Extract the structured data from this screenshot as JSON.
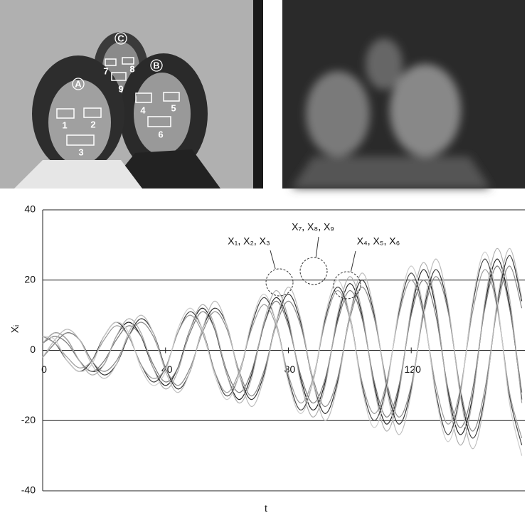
{
  "photo_labels": {
    "persons": [
      "A",
      "B",
      "C"
    ],
    "regions": [
      "1",
      "2",
      "3",
      "4",
      "5",
      "6",
      "7",
      "8",
      "9"
    ]
  },
  "chart_data": {
    "type": "line",
    "xlabel": "t",
    "ylabel": "Xᵢ",
    "xlim": [
      0,
      157
    ],
    "xticks": [
      0,
      40,
      80,
      120
    ],
    "ylim": [
      -40,
      40
    ],
    "yticks": [
      -40,
      -20,
      0,
      20,
      40
    ],
    "grid": true,
    "annotations": [
      "X₁, X₂, X₃",
      "X₇, X₈, X₉",
      "X₄, X₅, X₆"
    ],
    "x": [
      0,
      4,
      8,
      12,
      16,
      20,
      24,
      28,
      32,
      36,
      40,
      44,
      48,
      52,
      56,
      60,
      64,
      68,
      72,
      76,
      80,
      84,
      88,
      92,
      96,
      100,
      104,
      108,
      112,
      116,
      120,
      124,
      128,
      132,
      136,
      140,
      144,
      148,
      152,
      156
    ],
    "series": [
      {
        "color": "#222222",
        "values": [
          2,
          5,
          3,
          -3,
          -6,
          -4,
          4,
          8,
          4,
          -5,
          -10,
          -5,
          6,
          12,
          6,
          -7,
          -14,
          -7,
          7,
          15,
          8,
          -8,
          -17,
          -9,
          9,
          19,
          10,
          -10,
          -21,
          -11,
          11,
          23,
          12,
          -12,
          -24,
          -13,
          13,
          26,
          13,
          -14
        ]
      },
      {
        "color": "#777777",
        "values": [
          2,
          4,
          2,
          -3,
          -6,
          -3,
          3,
          7,
          4,
          -4,
          -9,
          -5,
          5,
          11,
          6,
          -6,
          -12,
          -6,
          7,
          14,
          7,
          -7,
          -15,
          -8,
          8,
          17,
          9,
          -9,
          -19,
          -10,
          10,
          20,
          10,
          -11,
          -22,
          -11,
          12,
          24,
          12,
          -12
        ]
      },
      {
        "color": "#aaaaaa",
        "values": [
          2,
          5,
          3,
          -3,
          -7,
          -4,
          4,
          9,
          5,
          -5,
          -11,
          -6,
          6,
          13,
          7,
          -7,
          -15,
          -8,
          8,
          17,
          9,
          -9,
          -19,
          -10,
          10,
          21,
          11,
          -11,
          -23,
          -12,
          12,
          25,
          13,
          -13,
          -27,
          -14,
          14,
          29,
          15,
          -15
        ]
      },
      {
        "color": "#333333",
        "values": [
          -2,
          2,
          5,
          3,
          -3,
          -7,
          -4,
          4,
          9,
          5,
          -5,
          -11,
          -6,
          6,
          12,
          7,
          -7,
          -14,
          -7,
          8,
          16,
          8,
          -9,
          -18,
          -9,
          10,
          20,
          10,
          -10,
          -21,
          -11,
          11,
          23,
          12,
          -12,
          -25,
          -13,
          13,
          27,
          14
        ]
      },
      {
        "color": "#888888",
        "values": [
          -2,
          2,
          5,
          3,
          -3,
          -6,
          -3,
          4,
          8,
          4,
          -5,
          -10,
          -5,
          5,
          11,
          6,
          -6,
          -13,
          -6,
          7,
          14,
          7,
          -8,
          -16,
          -8,
          9,
          18,
          9,
          -9,
          -19,
          -10,
          10,
          21,
          11,
          -11,
          -23,
          -11,
          12,
          24,
          12
        ]
      },
      {
        "color": "#bbbbbb",
        "values": [
          -2,
          3,
          6,
          3,
          -4,
          -8,
          -4,
          5,
          10,
          5,
          -6,
          -12,
          -6,
          6,
          14,
          7,
          -7,
          -16,
          -8,
          8,
          18,
          9,
          -9,
          -20,
          -10,
          10,
          22,
          11,
          -11,
          -24,
          -12,
          12,
          26,
          13,
          -13,
          -28,
          -14,
          14,
          29,
          15
        ]
      },
      {
        "color": "#444444",
        "values": [
          4,
          2,
          -3,
          -6,
          -3,
          4,
          8,
          4,
          -4,
          -9,
          -5,
          5,
          11,
          6,
          -6,
          -13,
          -7,
          7,
          15,
          8,
          -8,
          -17,
          -9,
          9,
          18,
          10,
          -10,
          -20,
          -10,
          11,
          22,
          11,
          -12,
          -24,
          -12,
          13,
          26,
          13,
          -13,
          -27
        ]
      },
      {
        "color": "#999999",
        "values": [
          4,
          2,
          -2,
          -5,
          -3,
          3,
          7,
          4,
          -4,
          -8,
          -5,
          5,
          10,
          5,
          -6,
          -12,
          -6,
          6,
          13,
          7,
          -7,
          -15,
          -8,
          8,
          17,
          9,
          -9,
          -18,
          -9,
          10,
          20,
          10,
          -10,
          -21,
          -11,
          11,
          23,
          12,
          -12,
          -25
        ]
      },
      {
        "color": "#cccccc",
        "values": [
          4,
          3,
          -3,
          -6,
          -4,
          4,
          8,
          5,
          -5,
          -10,
          -6,
          6,
          12,
          6,
          -7,
          -14,
          -7,
          8,
          16,
          8,
          -9,
          -18,
          -9,
          10,
          20,
          10,
          -11,
          -22,
          -11,
          12,
          24,
          12,
          -13,
          -26,
          -13,
          14,
          28,
          14,
          -15,
          -30
        ]
      }
    ]
  }
}
